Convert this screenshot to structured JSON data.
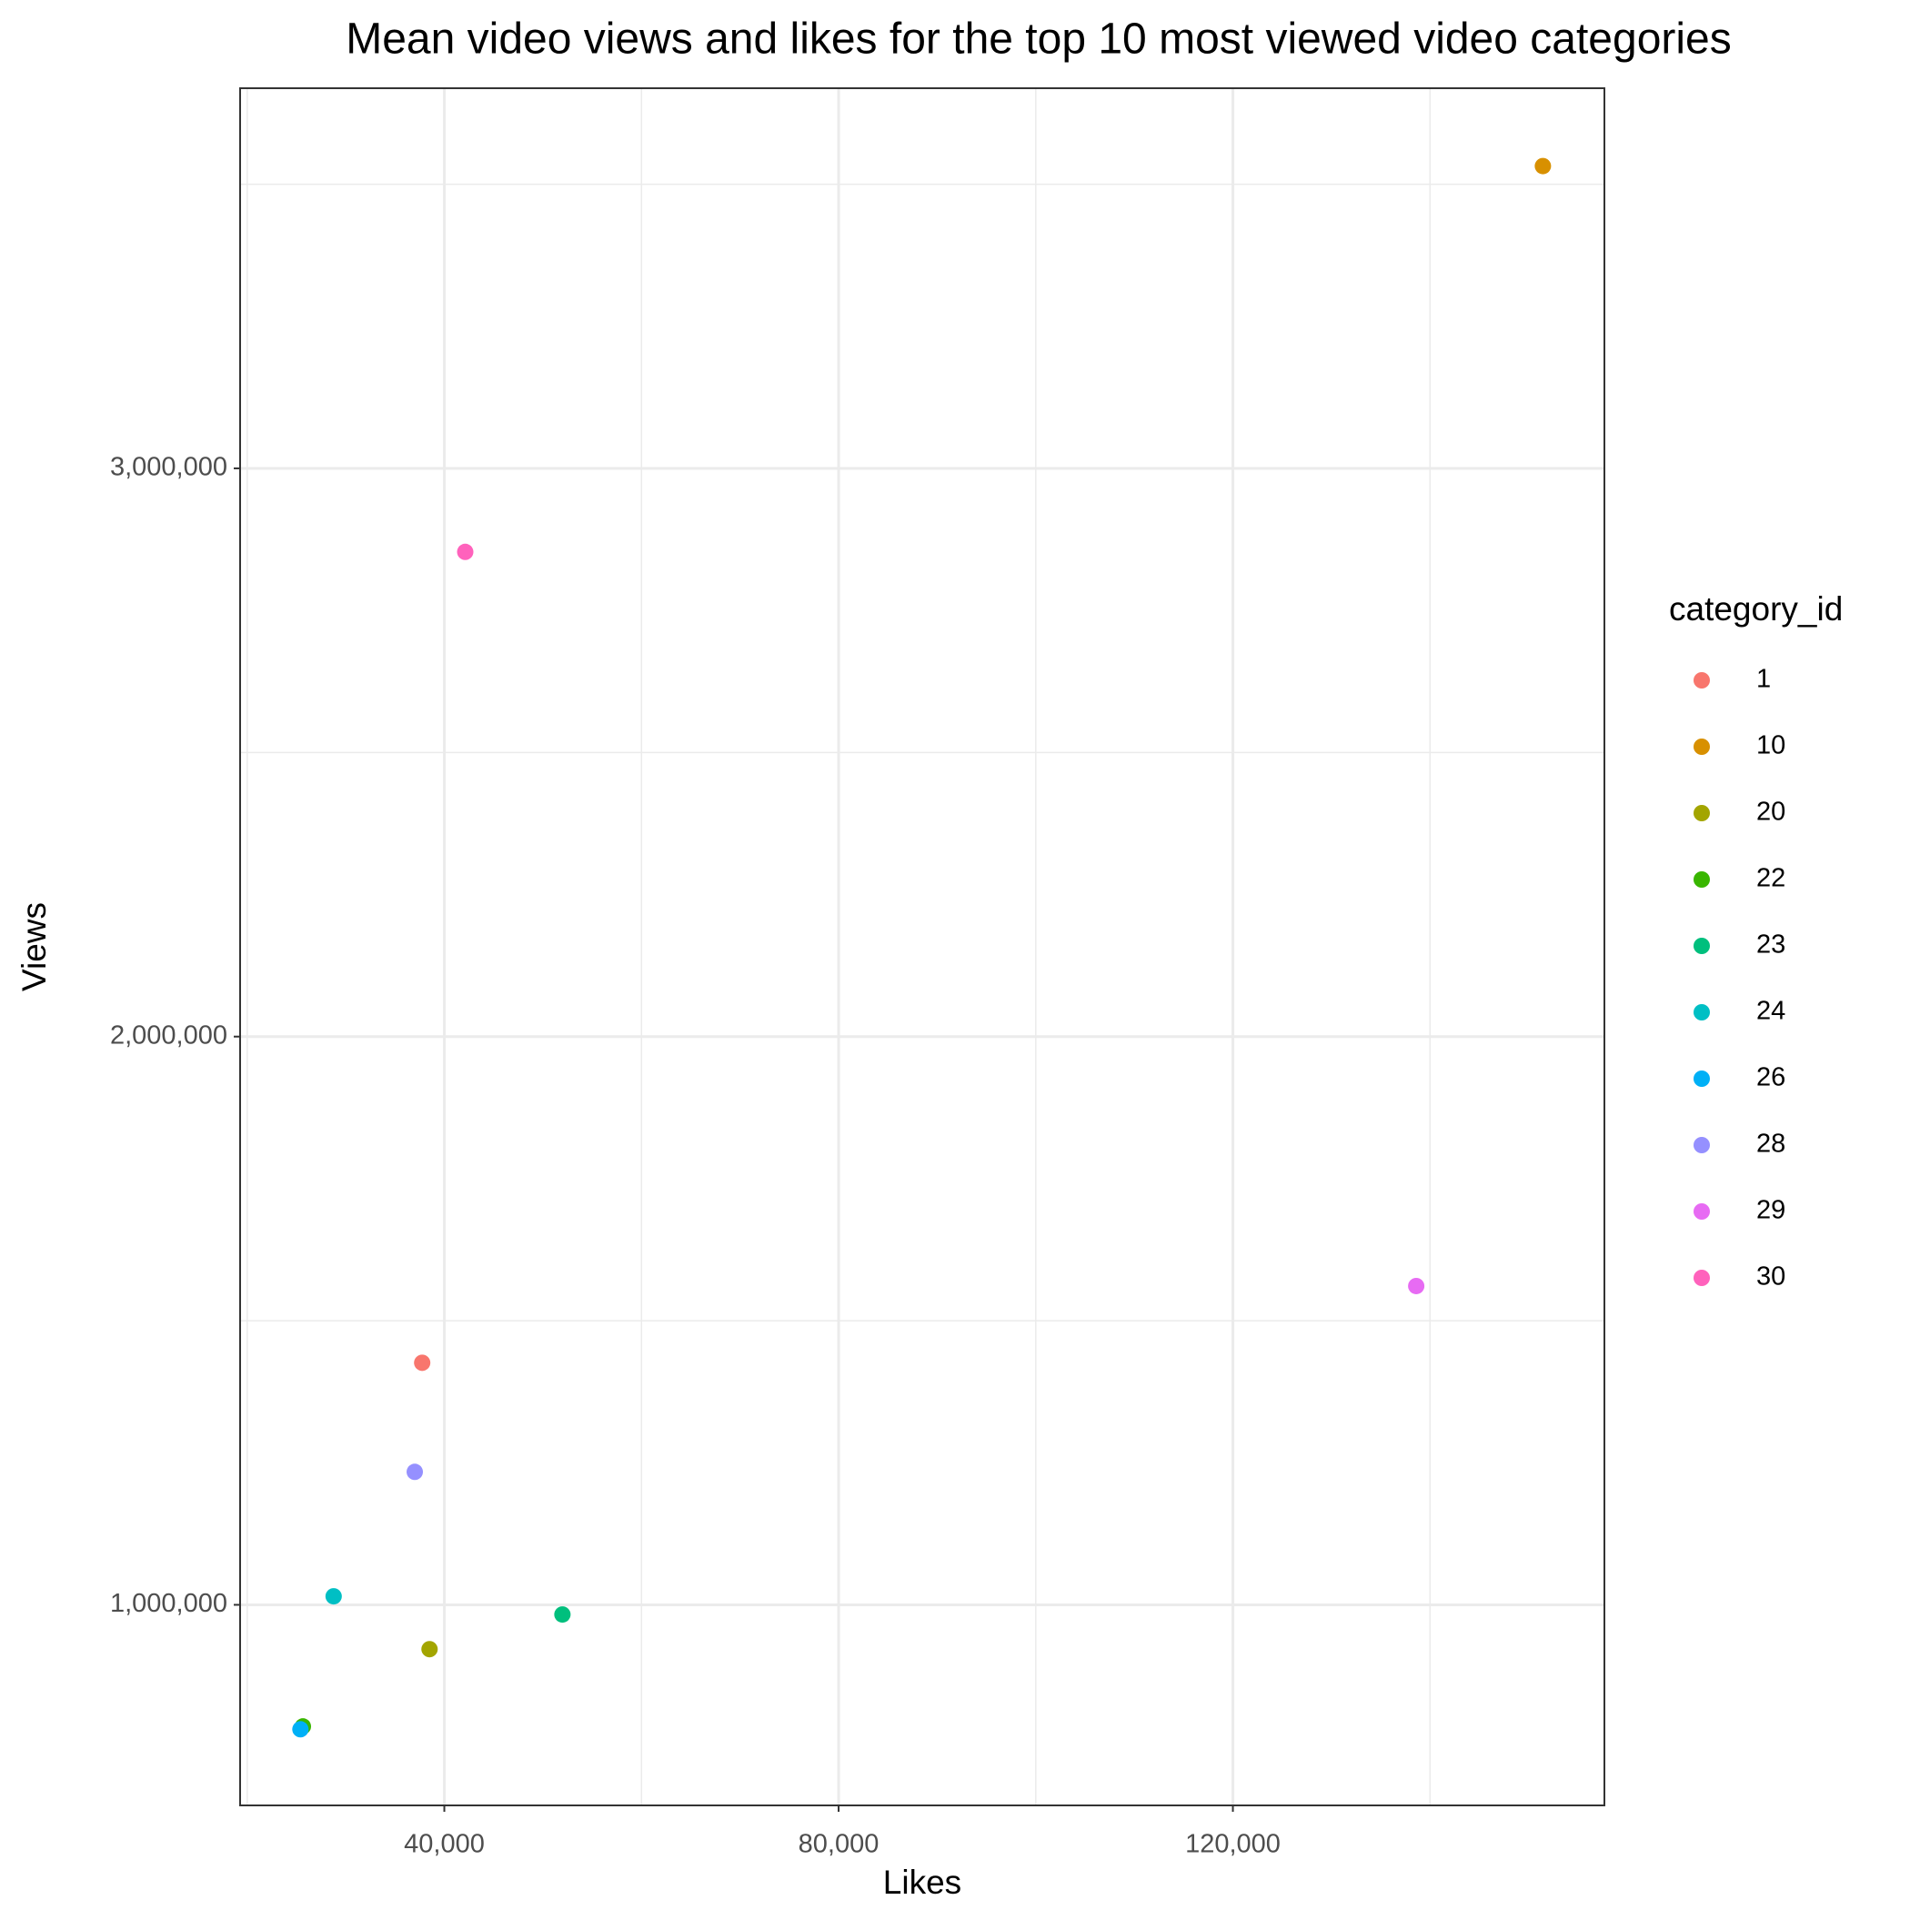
{
  "chart_data": {
    "type": "scatter",
    "title": "Mean video views and likes for the top 10 most viewed video categories",
    "x_label": "Likes",
    "y_label": "Views",
    "legend_title": "category_id",
    "legend": "right",
    "grid": true,
    "xlim": [
      19282,
      157691
    ],
    "ylim": [
      647000,
      3669000
    ],
    "xticks": [
      {
        "value": 40000,
        "label": "40,000"
      },
      {
        "value": 80000,
        "label": "80,000"
      },
      {
        "value": 120000,
        "label": "120,000"
      }
    ],
    "xminorticks": [
      20000,
      60000,
      100000,
      140000
    ],
    "yticks": [
      {
        "value": 1000000,
        "label": "1,000,000"
      },
      {
        "value": 2000000,
        "label": "2,000,000"
      },
      {
        "value": 3000000,
        "label": "3,000,000"
      }
    ],
    "yminorticks": [
      1500000,
      2500000,
      3500000
    ],
    "series": [
      {
        "name": "1",
        "color": "#F8766D",
        "x": [
          37754
        ],
        "values": [
          1426000
        ]
      },
      {
        "name": "10",
        "color": "#D89000",
        "x": [
          151451
        ],
        "values": [
          3532000
        ]
      },
      {
        "name": "20",
        "color": "#A3A500",
        "x": [
          38500
        ],
        "values": [
          922000
        ]
      },
      {
        "name": "22",
        "color": "#39B600",
        "x": [
          25650
        ],
        "values": [
          786000
        ]
      },
      {
        "name": "23",
        "color": "#00BF7D",
        "x": [
          51980
        ],
        "values": [
          983000
        ]
      },
      {
        "name": "24",
        "color": "#00BFC4",
        "x": [
          28770
        ],
        "values": [
          1015000
        ]
      },
      {
        "name": "26",
        "color": "#00B0F6",
        "x": [
          25400
        ],
        "values": [
          781000
        ]
      },
      {
        "name": "28",
        "color": "#9590FF",
        "x": [
          37000
        ],
        "values": [
          1234000
        ]
      },
      {
        "name": "29",
        "color": "#E76BF3",
        "x": [
          138600
        ],
        "values": [
          1561000
        ]
      },
      {
        "name": "30",
        "color": "#FF62BC",
        "x": [
          42120
        ],
        "values": [
          2853000
        ]
      }
    ]
  }
}
